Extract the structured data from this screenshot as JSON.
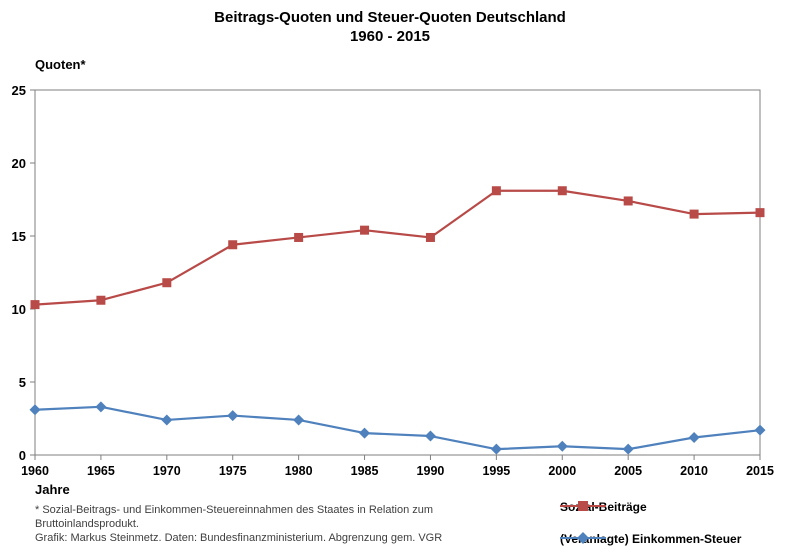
{
  "title": {
    "line1": "Beitrags-Quoten und Steuer-Quoten Deutschland",
    "line2": "1960 - 2015"
  },
  "axis": {
    "y_label": "Quoten*",
    "x_label": "Jahre"
  },
  "footnote": {
    "line1": "* Sozial-Beitrags- und Einkommen-Steuereinnahmen  des Staates in Relation zum",
    "line2": "Bruttoinlandsprodukt.",
    "line3": "Grafik: Markus Steinmetz. Daten: Bundesfinanzministerium.  Abgrenzung  gem. VGR"
  },
  "colors": {
    "sozial": "#b84a48",
    "steuer": "#4f81bd",
    "axis": "#7f7f7f",
    "text": "#000000"
  },
  "chart_data": {
    "type": "line",
    "title": "Beitrags-Quoten und Steuer-Quoten Deutschland 1960 - 2015",
    "xlabel": "Jahre",
    "ylabel": "Quoten*",
    "x": [
      1960,
      1965,
      1970,
      1975,
      1980,
      1985,
      1990,
      1995,
      2000,
      2005,
      2010,
      2015
    ],
    "series": [
      {
        "name": "Sozial-Beiträge",
        "marker": "square",
        "color": "#b84a48",
        "values": [
          10.3,
          10.6,
          11.8,
          14.4,
          14.9,
          15.4,
          14.9,
          18.1,
          18.1,
          17.4,
          16.5,
          16.6
        ]
      },
      {
        "name": "(Veranlagte) Einkommen-Steuer",
        "marker": "diamond",
        "color": "#4f81bd",
        "values": [
          3.1,
          3.3,
          2.4,
          2.7,
          2.4,
          1.5,
          1.3,
          0.4,
          0.6,
          0.4,
          1.2,
          1.7
        ]
      }
    ],
    "ylim": [
      0,
      25
    ],
    "yticks": [
      0,
      5,
      10,
      15,
      20,
      25
    ],
    "grid": false,
    "legend_position": "bottom-right"
  }
}
